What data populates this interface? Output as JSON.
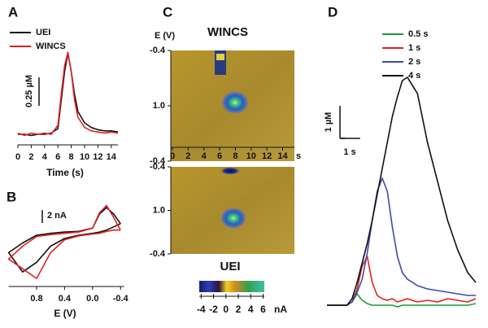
{
  "chart_data": [
    {
      "panel": "A",
      "type": "line",
      "x": [
        0,
        1,
        2,
        3,
        4,
        5,
        6,
        6.5,
        7,
        7.5,
        8,
        8.5,
        9,
        10,
        11,
        12,
        13,
        14,
        15
      ],
      "series": [
        {
          "name": "UEI",
          "color": "#111111",
          "values": [
            0,
            0,
            -0.01,
            0,
            0,
            0.01,
            0.05,
            0.3,
            0.55,
            0.71,
            0.55,
            0.35,
            0.2,
            0.1,
            0.06,
            0.04,
            0.03,
            0.03,
            0.02
          ]
        },
        {
          "name": "WINCS",
          "color": "#e02020",
          "values": [
            0.01,
            -0.01,
            0.01,
            0,
            0.01,
            0,
            0.08,
            0.35,
            0.6,
            0.72,
            0.55,
            0.3,
            0.15,
            0.06,
            0.03,
            0.02,
            0.01,
            0.02,
            0.01
          ]
        }
      ],
      "xlim": [
        0,
        15
      ],
      "xticks": [
        0,
        2,
        4,
        6,
        8,
        10,
        12,
        14
      ],
      "xlabel": "Time (s)",
      "ylim": [
        -0.05,
        0.75
      ],
      "scale_bars": [
        {
          "label": "0.25 µM",
          "value": 0.25
        }
      ]
    },
    {
      "panel": "B",
      "type": "line",
      "x": [
        -0.4,
        -0.3,
        -0.2,
        -0.1,
        0,
        0.2,
        0.4,
        0.6,
        0.8,
        1.0,
        1.2,
        1.0,
        0.8,
        0.6,
        0.4,
        0.2,
        0,
        -0.1,
        -0.2,
        -0.3,
        -0.4
      ],
      "series": [
        {
          "color": "#111111",
          "values": [
            1.5,
            3.0,
            4.0,
            3.0,
            0.8,
            0.3,
            0.2,
            0,
            -0.3,
            -1.5,
            -3.0,
            -6.0,
            -4.5,
            -2.0,
            -0.8,
            -0.3,
            0,
            0.2,
            0.5,
            1.0,
            1.5
          ]
        },
        {
          "color": "#e02020",
          "values": [
            0.5,
            2.5,
            4.3,
            3.2,
            0.8,
            0.2,
            0,
            -0.2,
            -0.5,
            -2.0,
            -4.0,
            -5.5,
            -7.0,
            -3.0,
            -1.0,
            -0.4,
            -0.1,
            0,
            0.3,
            0.5,
            0.5
          ]
        }
      ],
      "xlim": [
        1.2,
        -0.45
      ],
      "xticks": [
        0.8,
        0.4,
        {
          "value": 0,
          "label": "0.0"
        },
        -0.4
      ],
      "xlabel": "E (V)",
      "ylim": [
        -8,
        4
      ],
      "scale_bars": [
        {
          "label": "2 nA",
          "value": 2
        }
      ]
    },
    {
      "panel": "C",
      "type": "heatmap",
      "ylabel": "E (V)",
      "plots": [
        {
          "title": "WINCS"
        },
        {
          "title": "UEI"
        }
      ],
      "y_labels": [
        "-0.4",
        "1.0",
        "-0.4"
      ],
      "xlim": [
        0,
        15.5
      ],
      "xticks": [
        0,
        2,
        4,
        6,
        8,
        10,
        12,
        14
      ],
      "x_unit": "s",
      "colorbar": {
        "lim": [
          -4.3,
          6.2
        ],
        "ticks": [
          -4,
          -2,
          0,
          2,
          4,
          6
        ],
        "label": "nA"
      }
    },
    {
      "panel": "D",
      "type": "line",
      "x": [
        0,
        0.5,
        1.0,
        1.25,
        1.5,
        1.75,
        2.0,
        2.25,
        2.5,
        2.75,
        3.0,
        3.25,
        3.5,
        3.75,
        4.0,
        4.5,
        5.0,
        5.5,
        6.0,
        6.5,
        7.0,
        7.4
      ],
      "series": [
        {
          "name": "0.5 s",
          "color": "#1a9a3a",
          "values": [
            0,
            0,
            0,
            0.1,
            0.35,
            0.15,
            0.05,
            0,
            0,
            0,
            0,
            0,
            -0.05,
            0,
            0,
            0,
            0,
            0,
            0,
            0,
            0,
            0.05
          ]
        },
        {
          "name": "1 s",
          "color": "#e02020",
          "values": [
            0,
            0,
            0,
            0.1,
            0.5,
            1.2,
            1.5,
            0.7,
            0.3,
            0.2,
            0.15,
            0.2,
            0.1,
            0.15,
            0.2,
            0.1,
            0.15,
            0.1,
            0.2,
            0.15,
            0.1,
            0.2
          ]
        },
        {
          "name": "2 s",
          "color": "#3a4ab0",
          "values": [
            0,
            0,
            0,
            0.1,
            0.4,
            0.8,
            1.6,
            2.6,
            3.5,
            3.9,
            3.5,
            2.4,
            1.5,
            1.0,
            0.8,
            0.6,
            0.5,
            0.45,
            0.4,
            0.35,
            0.3,
            0.3
          ]
        },
        {
          "name": "4 s",
          "color": "#111111",
          "values": [
            0,
            0,
            0,
            0.2,
            0.7,
            1.3,
            1.9,
            2.6,
            3.4,
            4.2,
            5.0,
            5.8,
            6.4,
            6.9,
            7.0,
            6.5,
            5.0,
            3.8,
            2.6,
            1.7,
            1.0,
            0.7
          ]
        }
      ],
      "xlim": [
        0,
        7.4
      ],
      "ylim": [
        -0.5,
        7.5
      ],
      "scale_bars": [
        {
          "label": "1 µM",
          "value": 1
        },
        {
          "label": "1 s",
          "value": 1
        }
      ]
    }
  ]
}
